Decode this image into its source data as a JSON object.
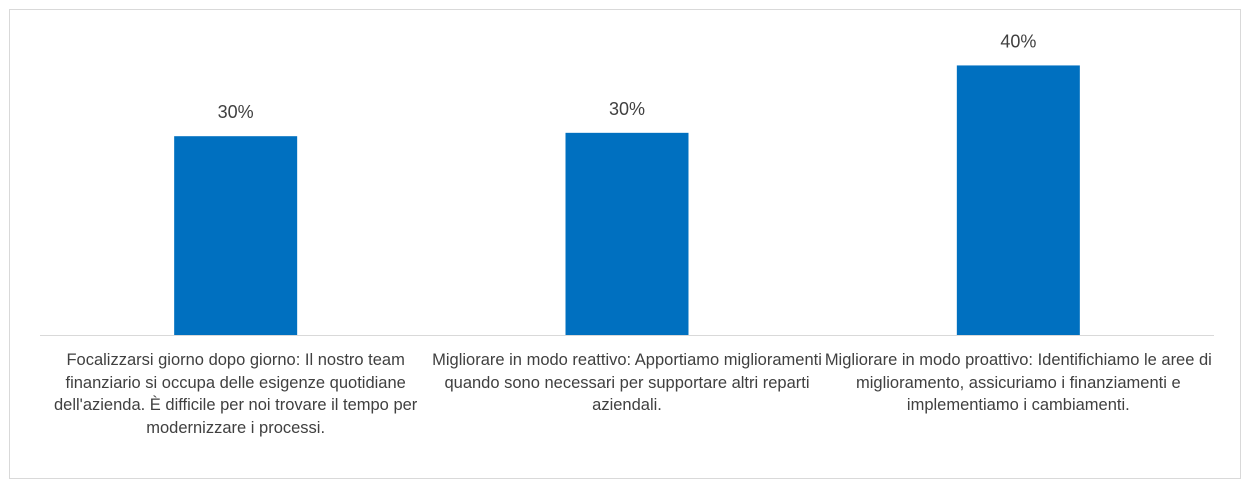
{
  "chart_data": {
    "type": "bar",
    "categories": [
      "Focalizzarsi giorno dopo giorno: Il nostro team finanziario si occupa delle esigenze quotidiane dell'azienda. È difficile per noi trovare il tempo per modernizzare i processi.",
      "Migliorare in modo reattivo: Apportiamo miglioramenti quando sono necessari per supportare altri reparti aziendali.",
      "Migliorare in modo proattivo: Identifichiamo le aree di miglioramento, assicuriamo i finanziamenti e implementiamo i cambiamenti."
    ],
    "values": [
      29.5,
      30.0,
      40.0
    ],
    "data_labels": [
      "30%",
      "30%",
      "40%"
    ],
    "unit": "%",
    "ylim": [
      0,
      46
    ],
    "grid": false,
    "legend": "none",
    "title": "",
    "xlabel": "",
    "ylabel": "",
    "colors": {
      "bar": "#0070C0",
      "axis": "#d9d9d9",
      "text": "#404040",
      "frame": "#d9d9d9"
    }
  }
}
